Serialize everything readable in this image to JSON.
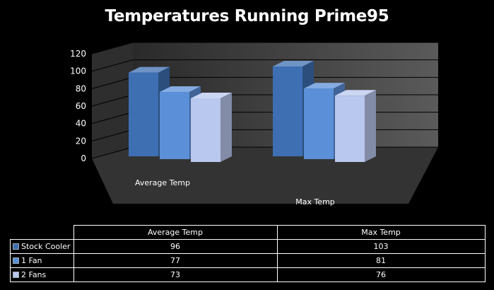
{
  "chart_data": {
    "type": "bar",
    "title": "Temperatures Running Prime95",
    "categories": [
      "Average Temp",
      "Max Temp"
    ],
    "series": [
      {
        "name": "Stock Cooler",
        "values": [
          96,
          103
        ],
        "color": "#3d6fb2"
      },
      {
        "name": "1 Fan",
        "values": [
          77,
          81
        ],
        "color": "#5b8fd8"
      },
      {
        "name": "2 Fans",
        "values": [
          73,
          76
        ],
        "color": "#b9c8ee"
      }
    ],
    "ylim": [
      0,
      120
    ],
    "yticks": [
      "0",
      "20",
      "40",
      "60",
      "80",
      "100",
      "120"
    ],
    "grid": true,
    "legend": "data-table"
  }
}
